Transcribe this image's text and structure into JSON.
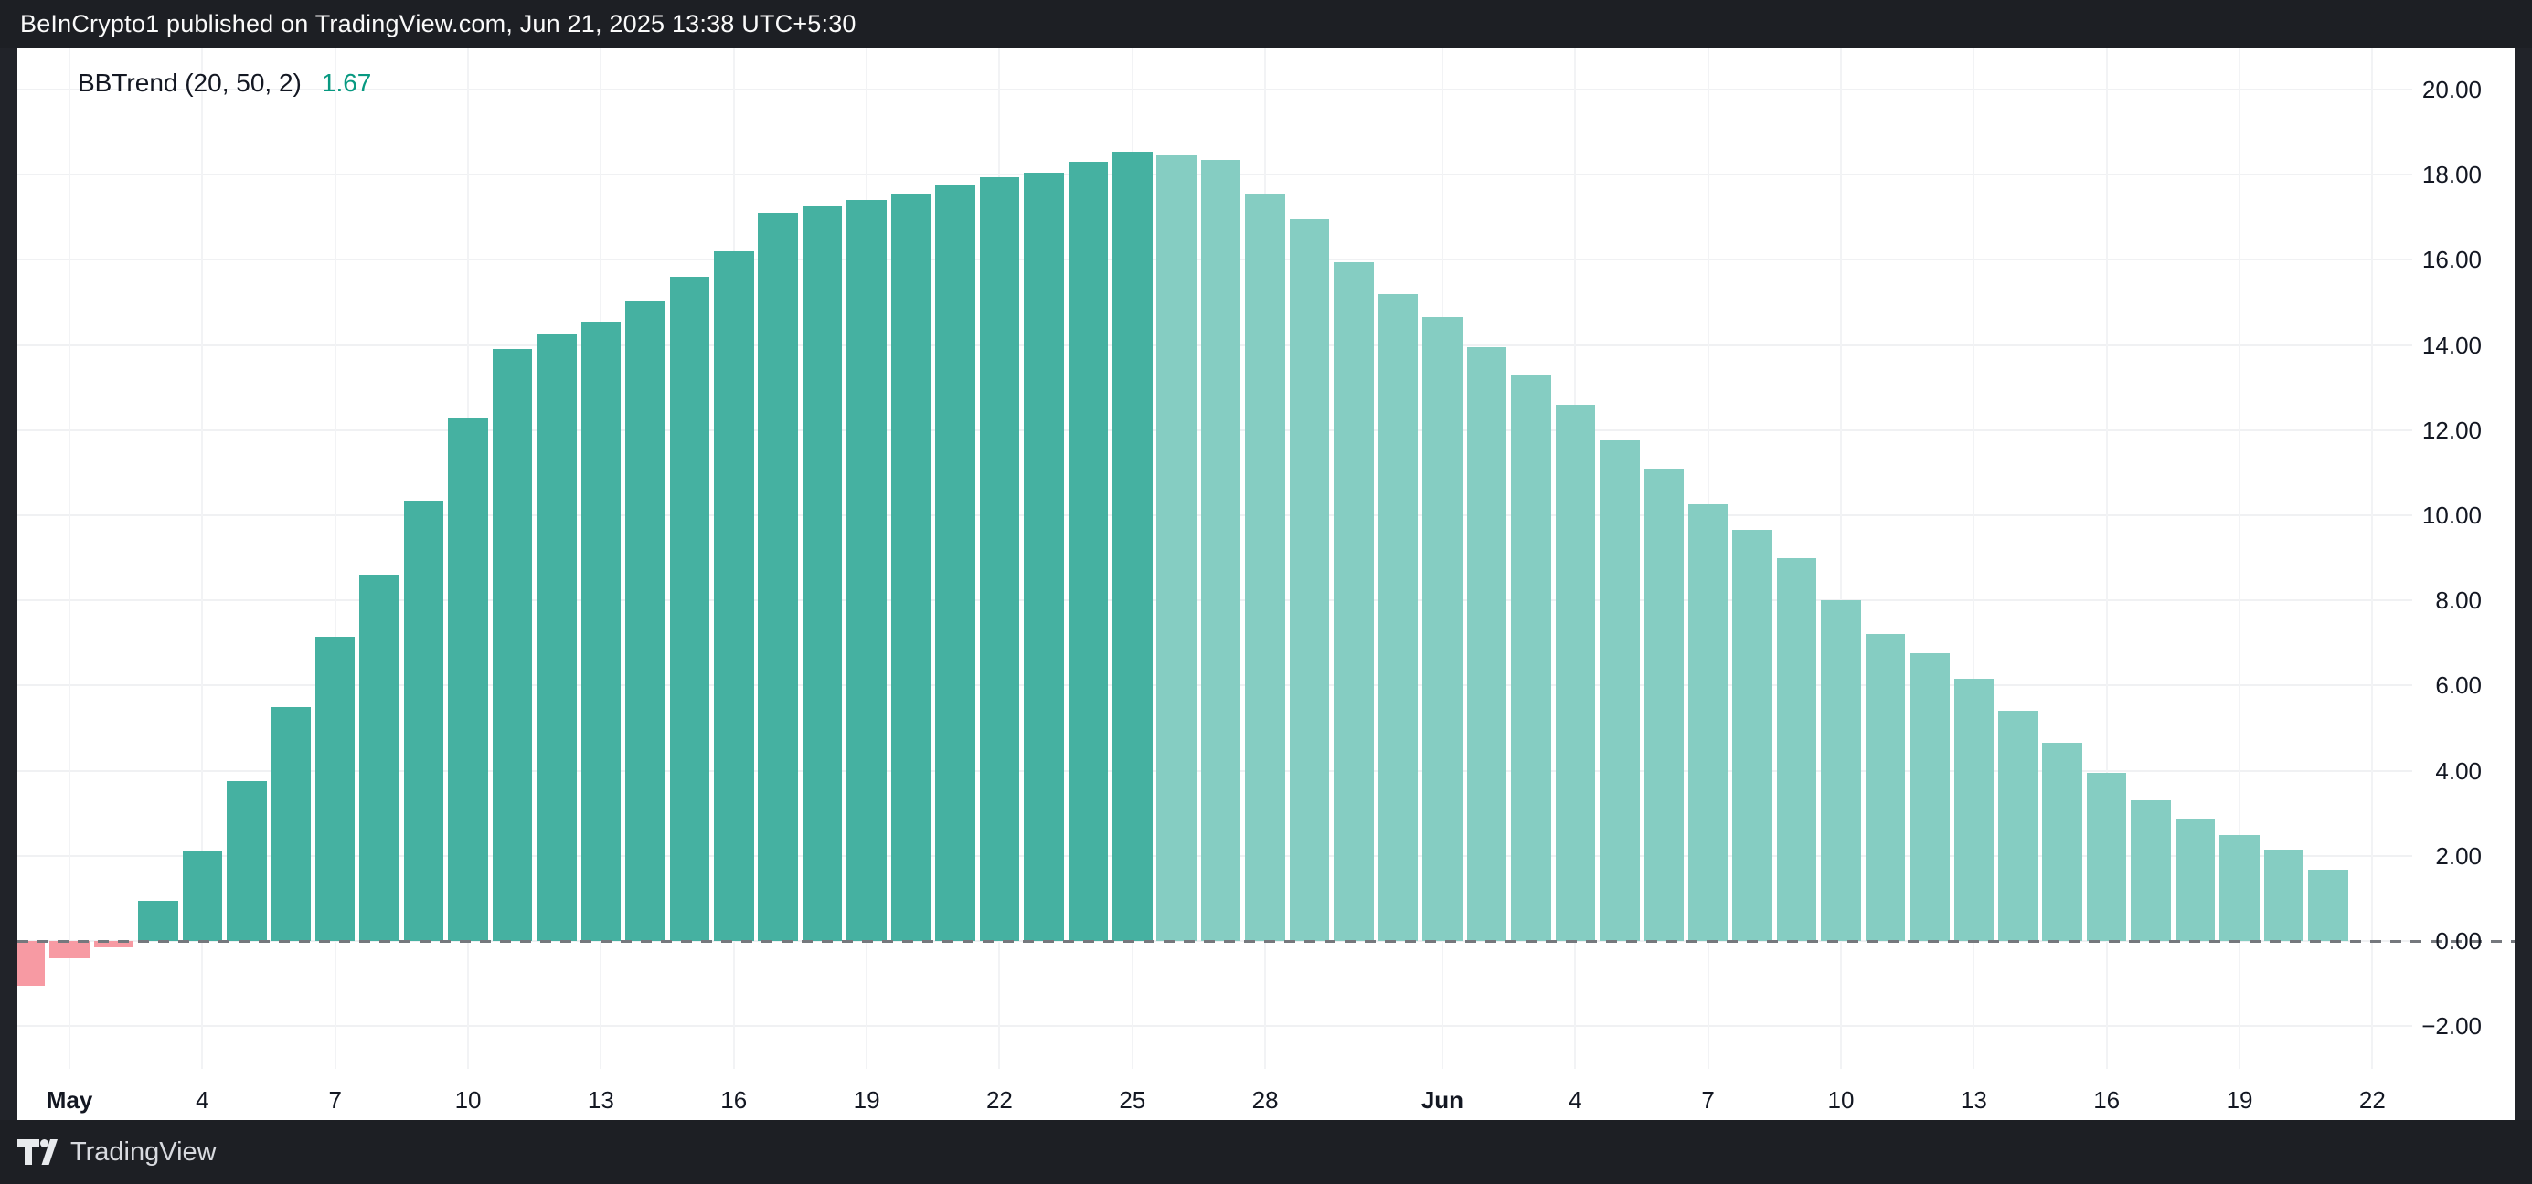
{
  "header": {
    "text": "BeInCrypto1 published on TradingView.com, Jun 21, 2025 13:38 UTC+5:30"
  },
  "legend": {
    "indicator": "BBTrend (20, 50, 2)",
    "value": "1.67"
  },
  "footer": {
    "brand": "TradingView"
  },
  "colors": {
    "page_background": "#1d1f24",
    "panel_background": "#ffffff",
    "rising": "#45b1a1",
    "fading": "#85cdc2",
    "negative": "#f79aa3",
    "legend_value": "#089981",
    "axis_text": "#131722",
    "gridline": "#f0f1f3",
    "zero_line": "#75787d"
  },
  "chart_data": {
    "type": "bar",
    "title": "BBTrend (20, 50, 2)",
    "current_value": 1.67,
    "ylabel": "",
    "xlabel": "",
    "ylim": [
      -4.2,
      21.0
    ],
    "grid": true,
    "zero_line_style": "dashed",
    "legend_position": "top-left",
    "y_ticks": [
      {
        "value": 20,
        "label": "20.00"
      },
      {
        "value": 18,
        "label": "18.00"
      },
      {
        "value": 16,
        "label": "16.00"
      },
      {
        "value": 14,
        "label": "14.00"
      },
      {
        "value": 12,
        "label": "12.00"
      },
      {
        "value": 10,
        "label": "10.00"
      },
      {
        "value": 8,
        "label": "8.00"
      },
      {
        "value": 6,
        "label": "6.00"
      },
      {
        "value": 4,
        "label": "4.00"
      },
      {
        "value": 2,
        "label": "2.00"
      },
      {
        "value": 0,
        "label": "0.00"
      },
      {
        "value": -2,
        "label": "−2.00"
      }
    ],
    "x_ticks": [
      {
        "label": "May",
        "day_offset": 0,
        "bold": true
      },
      {
        "label": "4",
        "day_offset": 3,
        "bold": false
      },
      {
        "label": "7",
        "day_offset": 6,
        "bold": false
      },
      {
        "label": "10",
        "day_offset": 9,
        "bold": false
      },
      {
        "label": "13",
        "day_offset": 12,
        "bold": false
      },
      {
        "label": "16",
        "day_offset": 15,
        "bold": false
      },
      {
        "label": "19",
        "day_offset": 18,
        "bold": false
      },
      {
        "label": "22",
        "day_offset": 21,
        "bold": false
      },
      {
        "label": "25",
        "day_offset": 24,
        "bold": false
      },
      {
        "label": "28",
        "day_offset": 27,
        "bold": false
      },
      {
        "label": "Jun",
        "day_offset": 31,
        "bold": true
      },
      {
        "label": "4",
        "day_offset": 34,
        "bold": false
      },
      {
        "label": "7",
        "day_offset": 37,
        "bold": false
      },
      {
        "label": "10",
        "day_offset": 40,
        "bold": false
      },
      {
        "label": "13",
        "day_offset": 43,
        "bold": false
      },
      {
        "label": "16",
        "day_offset": 46,
        "bold": false
      },
      {
        "label": "19",
        "day_offset": 49,
        "bold": false
      },
      {
        "label": "22",
        "day_offset": 52,
        "bold": false
      }
    ],
    "bars": [
      {
        "date": "Apr 30",
        "value": -1.05,
        "phase": "negative"
      },
      {
        "date": "May 1",
        "value": -0.4,
        "phase": "negative"
      },
      {
        "date": "May 2",
        "value": -0.15,
        "phase": "negative"
      },
      {
        "date": "May 3",
        "value": 0.95,
        "phase": "rising"
      },
      {
        "date": "May 4",
        "value": 2.1,
        "phase": "rising"
      },
      {
        "date": "May 5",
        "value": 3.75,
        "phase": "rising"
      },
      {
        "date": "May 6",
        "value": 5.5,
        "phase": "rising"
      },
      {
        "date": "May 7",
        "value": 7.15,
        "phase": "rising"
      },
      {
        "date": "May 8",
        "value": 8.6,
        "phase": "rising"
      },
      {
        "date": "May 9",
        "value": 10.35,
        "phase": "rising"
      },
      {
        "date": "May 10",
        "value": 12.3,
        "phase": "rising"
      },
      {
        "date": "May 11",
        "value": 13.9,
        "phase": "rising"
      },
      {
        "date": "May 12",
        "value": 14.25,
        "phase": "rising"
      },
      {
        "date": "May 13",
        "value": 14.55,
        "phase": "rising"
      },
      {
        "date": "May 14",
        "value": 15.05,
        "phase": "rising"
      },
      {
        "date": "May 15",
        "value": 15.6,
        "phase": "rising"
      },
      {
        "date": "May 16",
        "value": 16.2,
        "phase": "rising"
      },
      {
        "date": "May 17",
        "value": 17.1,
        "phase": "rising"
      },
      {
        "date": "May 18",
        "value": 17.25,
        "phase": "rising"
      },
      {
        "date": "May 19",
        "value": 17.4,
        "phase": "rising"
      },
      {
        "date": "May 20",
        "value": 17.55,
        "phase": "rising"
      },
      {
        "date": "May 21",
        "value": 17.75,
        "phase": "rising"
      },
      {
        "date": "May 22",
        "value": 17.95,
        "phase": "rising"
      },
      {
        "date": "May 23",
        "value": 18.05,
        "phase": "rising"
      },
      {
        "date": "May 24",
        "value": 18.3,
        "phase": "rising"
      },
      {
        "date": "May 25",
        "value": 18.55,
        "phase": "rising"
      },
      {
        "date": "May 26",
        "value": 18.45,
        "phase": "fading"
      },
      {
        "date": "May 27",
        "value": 18.35,
        "phase": "fading"
      },
      {
        "date": "May 28",
        "value": 17.55,
        "phase": "fading"
      },
      {
        "date": "May 29",
        "value": 16.95,
        "phase": "fading"
      },
      {
        "date": "May 30",
        "value": 15.95,
        "phase": "fading"
      },
      {
        "date": "May 31",
        "value": 15.2,
        "phase": "fading"
      },
      {
        "date": "Jun 1",
        "value": 14.65,
        "phase": "fading"
      },
      {
        "date": "Jun 2",
        "value": 13.95,
        "phase": "fading"
      },
      {
        "date": "Jun 3",
        "value": 13.3,
        "phase": "fading"
      },
      {
        "date": "Jun 4",
        "value": 12.6,
        "phase": "fading"
      },
      {
        "date": "Jun 5",
        "value": 11.75,
        "phase": "fading"
      },
      {
        "date": "Jun 6",
        "value": 11.1,
        "phase": "fading"
      },
      {
        "date": "Jun 7",
        "value": 10.25,
        "phase": "fading"
      },
      {
        "date": "Jun 8",
        "value": 9.65,
        "phase": "fading"
      },
      {
        "date": "Jun 9",
        "value": 9.0,
        "phase": "fading"
      },
      {
        "date": "Jun 10",
        "value": 8.0,
        "phase": "fading"
      },
      {
        "date": "Jun 11",
        "value": 7.2,
        "phase": "fading"
      },
      {
        "date": "Jun 12",
        "value": 6.75,
        "phase": "fading"
      },
      {
        "date": "Jun 13",
        "value": 6.15,
        "phase": "fading"
      },
      {
        "date": "Jun 14",
        "value": 5.4,
        "phase": "fading"
      },
      {
        "date": "Jun 15",
        "value": 4.65,
        "phase": "fading"
      },
      {
        "date": "Jun 16",
        "value": 3.95,
        "phase": "fading"
      },
      {
        "date": "Jun 17",
        "value": 3.3,
        "phase": "fading"
      },
      {
        "date": "Jun 18",
        "value": 2.85,
        "phase": "fading"
      },
      {
        "date": "Jun 19",
        "value": 2.5,
        "phase": "fading"
      },
      {
        "date": "Jun 20",
        "value": 2.15,
        "phase": "fading"
      },
      {
        "date": "Jun 21",
        "value": 1.67,
        "phase": "fading"
      }
    ]
  }
}
